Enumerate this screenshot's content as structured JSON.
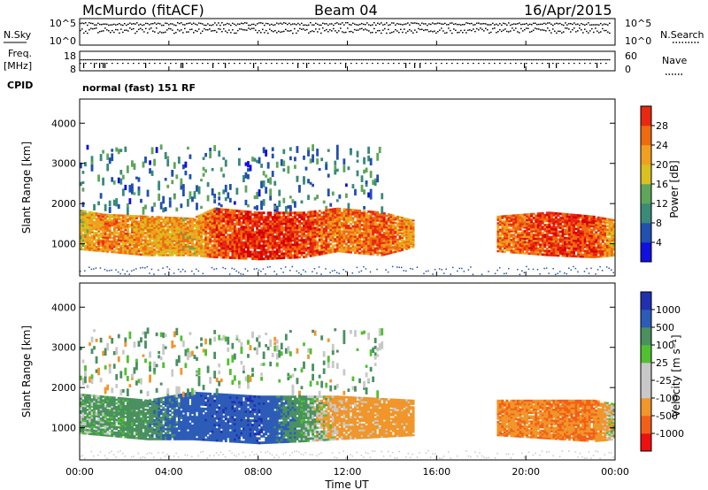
{
  "header": {
    "station": "McMurdo (fitACF)",
    "beam": "Beam 04",
    "date": "16/Apr/2015"
  },
  "top_panels": {
    "nsky_label": "N.Sky",
    "nsky_ticks": [
      "10^5",
      "10^0"
    ],
    "nsearch_label": "N.Search",
    "nsearch_ticks": [
      "10^5",
      "10^0"
    ],
    "freq_label_1": "Freq.",
    "freq_label_2": "[MHz]",
    "freq_ticks": [
      "18",
      "8"
    ],
    "nave_label": "Nave",
    "nave_ticks": [
      "60",
      "0"
    ],
    "cpid_label": "CPID",
    "cpid_text": "normal (fast) 151 RF"
  },
  "colors": {
    "power": [
      "#1010e0",
      "#2050b0",
      "#3a8a78",
      "#5fa55a",
      "#d8c020",
      "#f0a020",
      "#f06a10",
      "#e82810",
      "#d80000"
    ],
    "velocity": [
      "#ee1010",
      "#f26018",
      "#f0962a",
      "#c8c8c8",
      "#c8c8c8",
      "#50c030",
      "#4a9060",
      "#2d5cb8",
      "#2030b0"
    ]
  },
  "chart_data": [
    {
      "type": "heatmap",
      "panel": "power",
      "ylabel": "Slant Range [km]",
      "yticks": [
        "1000",
        "2000",
        "3000",
        "4000"
      ],
      "ylim": [
        200,
        4600
      ],
      "x_ticks": [
        "00:00",
        "04:00",
        "08:00",
        "12:00",
        "16:00",
        "20:00",
        "00:00"
      ],
      "xlim_hours": [
        0,
        24
      ],
      "colorbar_label": "Power [dB]",
      "colorbar_ticks": [
        "4",
        "8",
        "12",
        "16",
        "20",
        "24",
        "28"
      ],
      "colorbar_range_db": [
        0,
        32
      ],
      "main_band": [
        {
          "t": 0.0,
          "lo": 850,
          "hi": 1850,
          "v": 16
        },
        {
          "t": 1.0,
          "lo": 800,
          "hi": 1750,
          "v": 22
        },
        {
          "t": 3.0,
          "lo": 700,
          "hi": 1700,
          "v": 20
        },
        {
          "t": 5.0,
          "lo": 700,
          "hi": 1650,
          "v": 18
        },
        {
          "t": 6.0,
          "lo": 650,
          "hi": 1900,
          "v": 24
        },
        {
          "t": 8.0,
          "lo": 600,
          "hi": 1800,
          "v": 28
        },
        {
          "t": 10.0,
          "lo": 650,
          "hi": 1800,
          "v": 26
        },
        {
          "t": 11.5,
          "lo": 800,
          "hi": 1900,
          "v": 22
        },
        {
          "t": 13.5,
          "lo": 700,
          "hi": 1800,
          "v": 24
        },
        {
          "t": 14.9,
          "lo": 900,
          "hi": 1600,
          "v": 20
        },
        {
          "t": 15.0,
          "lo": 0,
          "hi": 0,
          "v": 0
        },
        {
          "t": 18.6,
          "lo": 0,
          "hi": 0,
          "v": 0
        },
        {
          "t": 18.7,
          "lo": 800,
          "hi": 1700,
          "v": 22
        },
        {
          "t": 21.0,
          "lo": 700,
          "hi": 1800,
          "v": 26
        },
        {
          "t": 23.0,
          "lo": 650,
          "hi": 1700,
          "v": 26
        },
        {
          "t": 24.0,
          "lo": 700,
          "hi": 1600,
          "v": 18
        }
      ],
      "scatter_region": {
        "t0": 0.0,
        "t1": 13.5,
        "lo": 1900,
        "hi": 3500,
        "v": 8
      }
    },
    {
      "type": "heatmap",
      "panel": "velocity",
      "xlabel": "Time UT",
      "ylabel": "Slant Range [km]",
      "yticks": [
        "1000",
        "2000",
        "3000",
        "4000"
      ],
      "ylim": [
        200,
        4600
      ],
      "x_ticks": [
        "00:00",
        "04:00",
        "08:00",
        "12:00",
        "16:00",
        "20:00",
        "00:00"
      ],
      "xlim_hours": [
        0,
        24
      ],
      "colorbar_label": "Velocity [m s⁻¹]",
      "colorbar_ticks": [
        "1000",
        "500",
        "100",
        "25",
        "-25",
        "-100",
        "-500",
        "-1000"
      ],
      "main_band": [
        {
          "t": 0.0,
          "lo": 850,
          "hi": 1850,
          "v": 100
        },
        {
          "t": 3.0,
          "lo": 700,
          "hi": 1700,
          "v": 300
        },
        {
          "t": 5.0,
          "lo": 700,
          "hi": 1900,
          "v": 800
        },
        {
          "t": 8.0,
          "lo": 600,
          "hi": 1800,
          "v": 900
        },
        {
          "t": 10.0,
          "lo": 650,
          "hi": 1800,
          "v": 200
        },
        {
          "t": 11.5,
          "lo": 700,
          "hi": 1800,
          "v": -200
        },
        {
          "t": 14.9,
          "lo": 800,
          "hi": 1700,
          "v": -300
        },
        {
          "t": 15.0,
          "lo": 0,
          "hi": 0,
          "v": 0
        },
        {
          "t": 18.6,
          "lo": 0,
          "hi": 0,
          "v": 0
        },
        {
          "t": 18.7,
          "lo": 800,
          "hi": 1700,
          "v": -400
        },
        {
          "t": 23.0,
          "lo": 650,
          "hi": 1700,
          "v": -500
        },
        {
          "t": 24.0,
          "lo": 700,
          "hi": 1600,
          "v": 100
        }
      ],
      "scatter_region": {
        "t0": 0.0,
        "t1": 13.5,
        "lo": 1900,
        "hi": 3500,
        "v": 50
      }
    }
  ]
}
